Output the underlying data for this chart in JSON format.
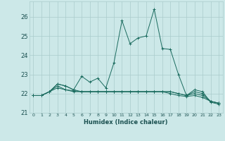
{
  "title": "",
  "xlabel": "Humidex (Indice chaleur)",
  "ylabel": "",
  "bg_color": "#cce8e8",
  "grid_color": "#aacccc",
  "line_color": "#1a6b5e",
  "xlim": [
    -0.5,
    23.5
  ],
  "ylim": [
    21.0,
    26.8
  ],
  "yticks": [
    21,
    22,
    23,
    24,
    25,
    26
  ],
  "xticks": [
    0,
    1,
    2,
    3,
    4,
    5,
    6,
    7,
    8,
    9,
    10,
    11,
    12,
    13,
    14,
    15,
    16,
    17,
    18,
    19,
    20,
    21,
    22,
    23
  ],
  "series": [
    [
      21.9,
      21.9,
      22.1,
      22.5,
      22.4,
      22.2,
      22.9,
      22.6,
      22.8,
      22.3,
      23.6,
      25.8,
      24.6,
      24.9,
      25.0,
      26.4,
      24.35,
      24.3,
      23.0,
      21.9,
      22.2,
      22.1,
      21.55,
      21.45
    ],
    [
      21.9,
      21.9,
      22.1,
      22.5,
      22.4,
      22.2,
      22.1,
      22.1,
      22.1,
      22.1,
      22.1,
      22.1,
      22.1,
      22.1,
      22.1,
      22.1,
      22.1,
      22.1,
      22.0,
      21.9,
      22.1,
      22.0,
      21.6,
      21.5
    ],
    [
      21.9,
      21.9,
      22.1,
      22.4,
      22.2,
      22.15,
      22.1,
      22.1,
      22.1,
      22.1,
      22.1,
      22.1,
      22.1,
      22.1,
      22.1,
      22.1,
      22.1,
      22.1,
      22.0,
      21.9,
      22.0,
      21.9,
      21.6,
      21.5
    ],
    [
      21.9,
      21.9,
      22.1,
      22.3,
      22.2,
      22.1,
      22.1,
      22.1,
      22.1,
      22.1,
      22.1,
      22.1,
      22.1,
      22.1,
      22.1,
      22.1,
      22.1,
      22.0,
      21.9,
      21.85,
      21.9,
      21.8,
      21.6,
      21.5
    ]
  ]
}
